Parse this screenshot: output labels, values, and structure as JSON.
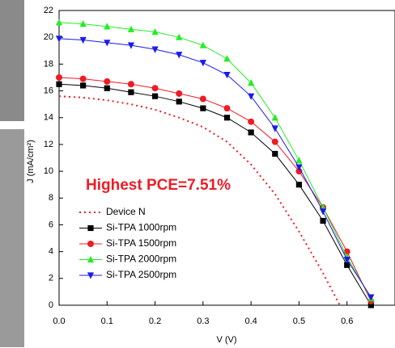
{
  "chart_data": {
    "type": "line",
    "xlabel": "V (V)",
    "ylabel": "J (mA/cm²)",
    "annotation": "Highest PCE=7.51%",
    "xlim": [
      0,
      0.7
    ],
    "ylim": [
      0,
      22
    ],
    "xticks": [
      {
        "value": 0,
        "label": "0.0"
      },
      0.1,
      0.2,
      0.3,
      0.4,
      0.5,
      0.6
    ],
    "yticks": [
      0,
      2,
      4,
      6,
      8,
      10,
      12,
      14,
      16,
      18,
      20,
      22
    ],
    "series": [
      {
        "name": "Device N",
        "color": "#ee1c24",
        "marker": "none",
        "dash": "dotted",
        "x": [
          0,
          0.05,
          0.1,
          0.15,
          0.2,
          0.25,
          0.3,
          0.35,
          0.4,
          0.45,
          0.5,
          0.55,
          0.585
        ],
        "values": [
          15.6,
          15.5,
          15.3,
          15.0,
          14.6,
          14.0,
          13.3,
          12.2,
          10.5,
          8.3,
          5.5,
          2.4,
          0
        ]
      },
      {
        "name": "Si-TPA 1000rpm",
        "color": "#000000",
        "marker": "square",
        "dash": "solid",
        "x": [
          0,
          0.05,
          0.1,
          0.15,
          0.2,
          0.25,
          0.3,
          0.35,
          0.4,
          0.45,
          0.5,
          0.55,
          0.6,
          0.65
        ],
        "values": [
          16.5,
          16.4,
          16.2,
          15.9,
          15.6,
          15.2,
          14.7,
          14.0,
          12.9,
          11.3,
          9.0,
          6.3,
          3.0,
          0
        ]
      },
      {
        "name": "Si-TPA 1500rpm",
        "color": "#ee1c24",
        "marker": "circle",
        "dash": "solid",
        "x": [
          0,
          0.05,
          0.1,
          0.15,
          0.2,
          0.25,
          0.3,
          0.35,
          0.4,
          0.45,
          0.5,
          0.55,
          0.6,
          0.65
        ],
        "values": [
          17.0,
          16.9,
          16.7,
          16.5,
          16.2,
          15.8,
          15.4,
          14.7,
          13.7,
          12.2,
          10.0,
          7.3,
          4.0,
          0.3
        ]
      },
      {
        "name": "Si-TPA 2000rpm",
        "color": "#22ee22",
        "marker": "triangle-up",
        "dash": "solid",
        "x": [
          0,
          0.05,
          0.1,
          0.15,
          0.2,
          0.25,
          0.3,
          0.35,
          0.4,
          0.45,
          0.5,
          0.55,
          0.6,
          0.65
        ],
        "values": [
          21.1,
          21.0,
          20.8,
          20.6,
          20.4,
          20.0,
          19.4,
          18.4,
          16.6,
          14.0,
          10.8,
          7.3,
          3.6,
          0.5
        ]
      },
      {
        "name": "Si-TPA 2500rpm",
        "color": "#1a1aee",
        "marker": "triangle-down",
        "dash": "solid",
        "x": [
          0,
          0.05,
          0.1,
          0.15,
          0.2,
          0.25,
          0.3,
          0.35,
          0.4,
          0.45,
          0.5,
          0.55,
          0.6,
          0.65
        ],
        "values": [
          19.9,
          19.8,
          19.6,
          19.4,
          19.1,
          18.7,
          18.1,
          17.2,
          15.6,
          13.2,
          10.3,
          7.0,
          3.4,
          0.6
        ]
      }
    ]
  }
}
